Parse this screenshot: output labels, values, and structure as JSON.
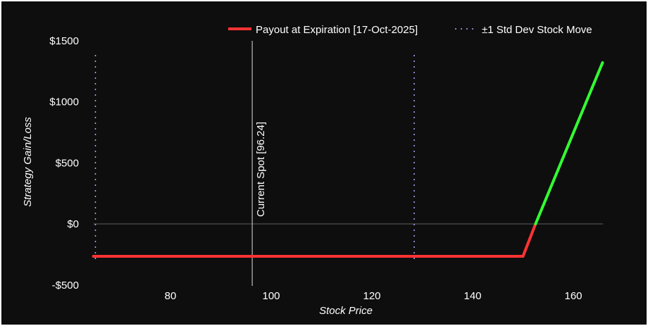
{
  "chart_data": {
    "type": "line",
    "xlabel": "Stock Price",
    "ylabel": "Strategy Gain/Loss",
    "xlim": [
      62,
      168
    ],
    "ylim": [
      -500,
      1500
    ],
    "x_ticks": [
      80,
      100,
      120,
      140,
      160
    ],
    "x_tick_labels": [
      "80",
      "100",
      "120",
      "140",
      "160"
    ],
    "y_ticks": [
      1500,
      1000,
      500,
      0,
      -500
    ],
    "y_tick_labels": [
      "$1500",
      "$1000",
      "$500",
      "$0",
      "-$500"
    ],
    "series": [
      {
        "name": "Payout at Expiration [17-Oct-2025]",
        "color_loss": "#ff3333",
        "color_gain": "#33ff33",
        "x": [
          64.7,
          150,
          152.5,
          165.8
        ],
        "y": [
          -265,
          -265,
          0,
          1320
        ]
      }
    ],
    "std_dev": {
      "name": "±1 Std Dev Stock Move",
      "color": "#9999ff",
      "x": [
        65.1,
        128.4
      ]
    },
    "spot": {
      "label": "Current Spot [96.24]",
      "x": 96.24
    },
    "legend_position": "top-right"
  }
}
